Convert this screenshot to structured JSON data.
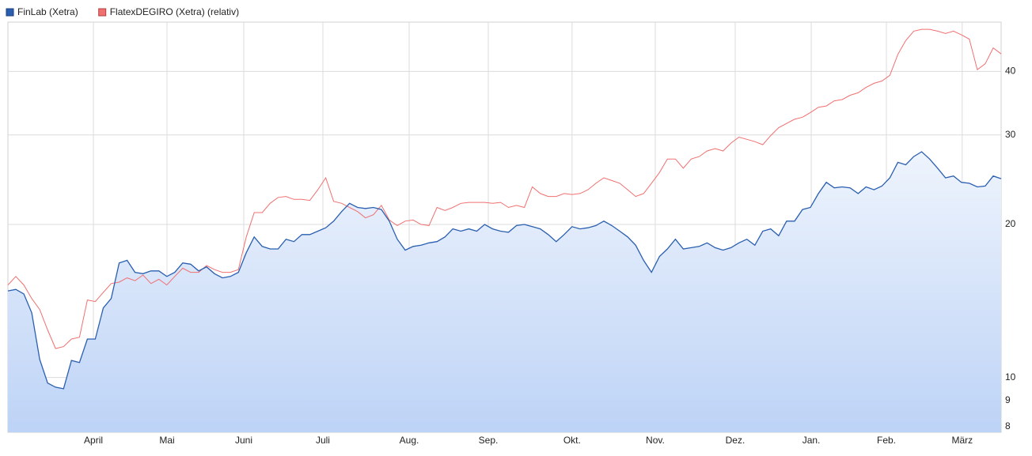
{
  "chart_data": {
    "type": "line",
    "log_scale": true,
    "grid": true,
    "legend": "top-left",
    "xlim": [
      0,
      125
    ],
    "xticks": [
      {
        "value": 10.76,
        "label": "April"
      },
      {
        "value": 20.02,
        "label": "Mai"
      },
      {
        "value": 29.68,
        "label": "Juni"
      },
      {
        "value": 39.64,
        "label": "Juli"
      },
      {
        "value": 50.5,
        "label": "Aug."
      },
      {
        "value": 60.46,
        "label": "Sep."
      },
      {
        "value": 71.0,
        "label": "Okt."
      },
      {
        "value": 81.47,
        "label": "Nov."
      },
      {
        "value": 91.53,
        "label": "Dez."
      },
      {
        "value": 101.1,
        "label": "Jan."
      },
      {
        "value": 110.56,
        "label": "Feb."
      },
      {
        "value": 120.1,
        "label": "März"
      }
    ],
    "ylim": [
      7.8,
      50
    ],
    "yticks": [
      8,
      9,
      10,
      20,
      30,
      40
    ],
    "series": [
      {
        "name": "FinLab (Xetra)",
        "color": "#2a5fb0",
        "area": true,
        "values": [
          14.8,
          14.9,
          14.6,
          13.4,
          10.85,
          9.75,
          9.57,
          9.5,
          10.8,
          10.7,
          11.9,
          11.9,
          13.7,
          14.3,
          16.8,
          17.0,
          16.1,
          16.0,
          16.2,
          16.2,
          15.8,
          16.1,
          16.8,
          16.7,
          16.2,
          16.5,
          16.0,
          15.7,
          15.8,
          16.1,
          17.6,
          18.9,
          18.1,
          17.9,
          17.9,
          18.7,
          18.5,
          19.1,
          19.1,
          19.4,
          19.7,
          20.3,
          21.2,
          22.0,
          21.6,
          21.5,
          21.6,
          21.4,
          20.3,
          18.7,
          17.8,
          18.1,
          18.2,
          18.4,
          18.5,
          18.9,
          19.6,
          19.4,
          19.6,
          19.4,
          20.0,
          19.6,
          19.4,
          19.3,
          19.9,
          20.0,
          19.8,
          19.6,
          19.1,
          18.5,
          19.1,
          19.8,
          19.6,
          19.7,
          19.9,
          20.3,
          19.9,
          19.4,
          18.9,
          18.2,
          17.0,
          16.1,
          17.3,
          17.9,
          18.7,
          17.9,
          18.0,
          18.1,
          18.4,
          18.0,
          17.8,
          18.0,
          18.4,
          18.7,
          18.2,
          19.4,
          19.6,
          19.0,
          20.3,
          20.3,
          21.4,
          21.6,
          23.0,
          24.2,
          23.6,
          23.7,
          23.6,
          23.0,
          23.7,
          23.4,
          23.8,
          24.7,
          26.5,
          26.2,
          27.2,
          27.8,
          26.9,
          25.8,
          24.7,
          24.9,
          24.2,
          24.1,
          23.7,
          23.8,
          24.9,
          24.6
        ]
      },
      {
        "name": "FlatexDEGIRO (Xetra) (relativ)",
        "color": "#f07070",
        "values": [
          15.2,
          15.8,
          15.2,
          14.3,
          13.6,
          12.4,
          11.4,
          11.5,
          11.9,
          12.0,
          14.2,
          14.1,
          14.7,
          15.3,
          15.4,
          15.7,
          15.5,
          15.9,
          15.3,
          15.6,
          15.2,
          15.8,
          16.4,
          16.1,
          16.1,
          16.6,
          16.3,
          16.1,
          16.1,
          16.3,
          18.9,
          21.1,
          21.1,
          22.0,
          22.6,
          22.7,
          22.4,
          22.4,
          22.3,
          23.4,
          24.7,
          22.2,
          22.0,
          21.6,
          21.2,
          20.6,
          20.9,
          21.8,
          20.4,
          19.9,
          20.3,
          20.4,
          20.0,
          19.9,
          21.6,
          21.3,
          21.6,
          22.0,
          22.1,
          22.1,
          22.1,
          22.0,
          22.1,
          21.6,
          21.8,
          21.6,
          23.7,
          23.0,
          22.7,
          22.7,
          23.0,
          22.9,
          23.0,
          23.4,
          24.1,
          24.7,
          24.4,
          24.1,
          23.4,
          22.7,
          23.0,
          24.1,
          25.3,
          26.9,
          26.9,
          25.8,
          26.9,
          27.2,
          27.9,
          28.2,
          27.9,
          28.9,
          29.7,
          29.4,
          29.1,
          28.7,
          29.9,
          31.0,
          31.6,
          32.2,
          32.5,
          33.2,
          34.0,
          34.2,
          35.0,
          35.2,
          35.9,
          36.3,
          37.2,
          37.9,
          38.3,
          39.3,
          43.2,
          46.0,
          48.0,
          48.4,
          48.4,
          48.0,
          47.5,
          48.0,
          47.2,
          46.3,
          40.3,
          41.4,
          44.5,
          43.3
        ]
      }
    ]
  }
}
